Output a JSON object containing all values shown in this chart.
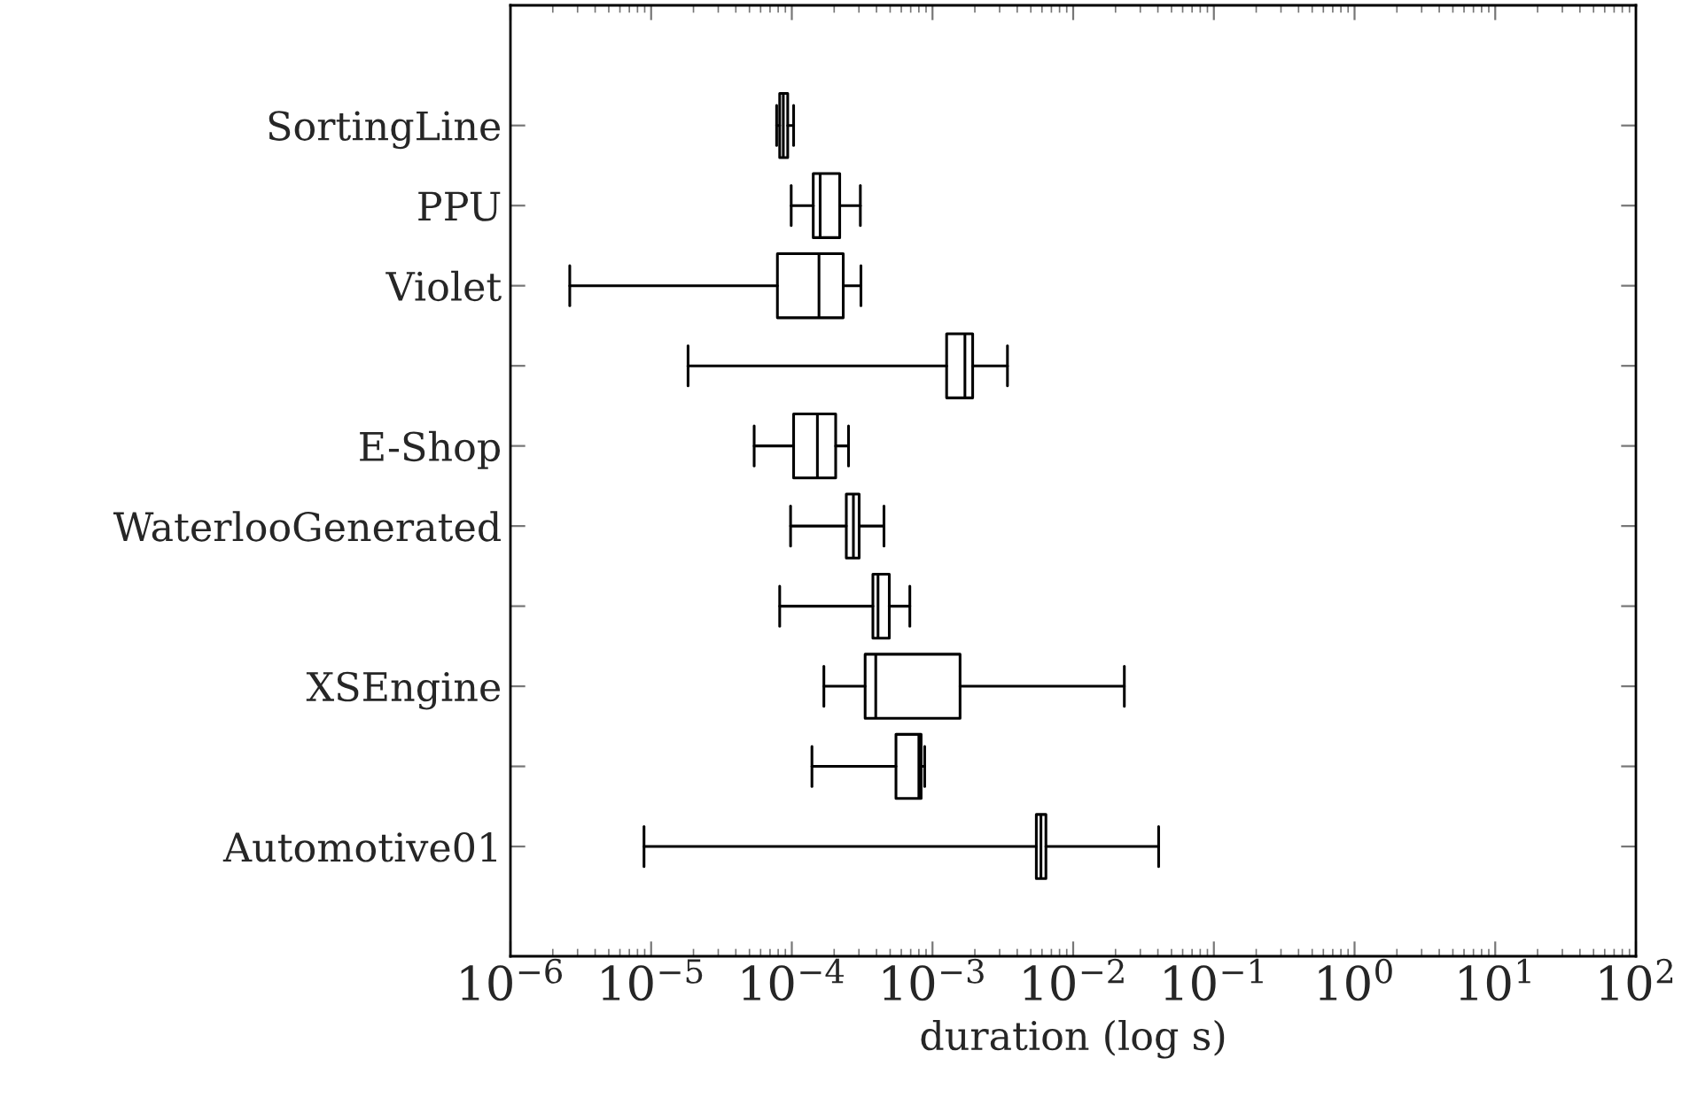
{
  "chart_data": {
    "type": "box",
    "orientation": "horizontal",
    "log": "x",
    "grid": false,
    "categories": [
      "SortingLine",
      "PPU",
      "Violet",
      null,
      "E-Shop",
      "WaterlooGenerated",
      null,
      "XSEngine",
      null,
      "Automotive01"
    ],
    "boxes": [
      {
        "low": 7.8e-05,
        "q1": 8.2e-05,
        "median": 8.7e-05,
        "q3": 9.35e-05,
        "high": 0.000103
      },
      {
        "low": 9.9e-05,
        "q1": 0.000142,
        "median": 0.000159,
        "q3": 0.000219,
        "high": 0.000307
      },
      {
        "low": 2.64e-06,
        "q1": 7.9e-05,
        "median": 0.000156,
        "q3": 0.000232,
        "high": 0.00031
      },
      {
        "low": 1.83e-05,
        "q1": 0.00126,
        "median": 0.0017,
        "q3": 0.00193,
        "high": 0.00341
      },
      {
        "low": 5.4e-05,
        "q1": 0.000103,
        "median": 0.000152,
        "q3": 0.000205,
        "high": 0.000253
      },
      {
        "low": 9.8e-05,
        "q1": 0.000244,
        "median": 0.000274,
        "q3": 0.000301,
        "high": 0.000452
      },
      {
        "low": 8.2e-05,
        "q1": 0.000377,
        "median": 0.00041,
        "q3": 0.000493,
        "high": 0.00069
      },
      {
        "low": 0.000169,
        "q1": 0.000332,
        "median": 0.000395,
        "q3": 0.00157,
        "high": 0.0231
      },
      {
        "low": 0.000139,
        "q1": 0.00055,
        "median": 0.0008,
        "q3": 0.00083,
        "high": 0.00088
      },
      {
        "low": 8.9e-06,
        "q1": 0.00547,
        "median": 0.0059,
        "q3": 0.0064,
        "high": 0.0405
      }
    ],
    "xlabel": "duration (log s)",
    "xlim": [
      1e-06,
      100
    ],
    "xticks": [
      {
        "value": 1e-06,
        "label": "10$^{−6}$"
      },
      {
        "value": 1e-05,
        "label": "10$^{−5}$"
      },
      {
        "value": 0.0001,
        "label": "10$^{−4}$"
      },
      {
        "value": 0.001,
        "label": "10$^{−3}$"
      },
      {
        "value": 0.01,
        "label": "10$^{−2}$"
      },
      {
        "value": 0.1,
        "label": "10$^{−1}$"
      },
      {
        "value": 1,
        "label": "10$^{0}$"
      },
      {
        "value": 10,
        "label": "10$^{1}$"
      },
      {
        "value": 100,
        "label": "10$^{2}$"
      }
    ]
  }
}
